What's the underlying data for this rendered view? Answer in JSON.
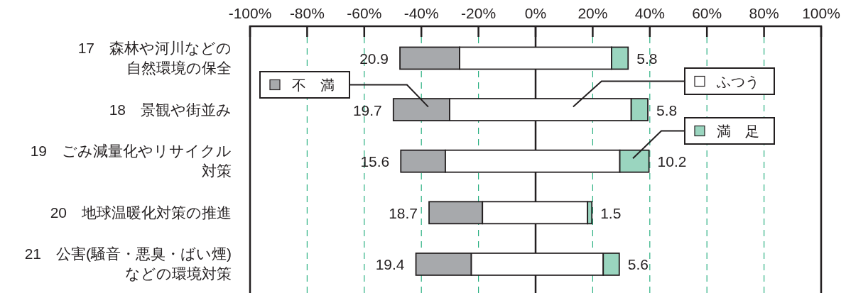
{
  "chart_data": {
    "type": "bar",
    "orientation": "horizontal",
    "grid": "x",
    "legend": "top",
    "categories": [
      "17　森林や河川などの自然環境の保全",
      "18　景観や街並み",
      "19　ごみ減量化やリサイクル対策",
      "20　地球温暖化対策の推進",
      "21　公害(騒音・悪臭・ばい煙)などの環境対策"
    ],
    "series": [
      {
        "name": "不　満",
        "color": "#a7a9ac",
        "base": [
          -47.5,
          -49.8,
          -47.2,
          -37.3,
          -41.9
        ],
        "values": [
          20.9,
          19.7,
          15.6,
          18.7,
          19.4
        ],
        "value_labels": [
          "20.9",
          "19.7",
          "15.6",
          "18.7",
          "19.4"
        ]
      },
      {
        "name": "ふつう",
        "color": "#ffffff",
        "base": [
          -26.6,
          -30.1,
          -31.6,
          -18.6,
          -22.5
        ],
        "values": [
          53.2,
          63.6,
          61.1,
          36.8,
          46.2
        ]
      },
      {
        "name": "満　足",
        "color": "#9ad5bf",
        "base": [
          26.6,
          33.5,
          29.5,
          18.2,
          23.7
        ],
        "values": [
          5.8,
          5.8,
          10.2,
          1.5,
          5.6
        ],
        "value_labels": [
          "5.8",
          "5.8",
          "10.2",
          "1.5",
          "5.6"
        ]
      }
    ],
    "xlim": [
      -100,
      100
    ],
    "xticks": [
      {
        "value": -100,
        "label": "-100%"
      },
      {
        "value": -80,
        "label": "-80%"
      },
      {
        "value": -60,
        "label": "-60%"
      },
      {
        "value": -40,
        "label": "-40%"
      },
      {
        "value": -20,
        "label": "-20%"
      },
      {
        "value": 0,
        "label": "0%"
      },
      {
        "value": 20,
        "label": "20%"
      },
      {
        "value": 40,
        "label": "40%"
      },
      {
        "value": 60,
        "label": "60%"
      },
      {
        "value": 80,
        "label": "80%"
      },
      {
        "value": 100,
        "label": "100%"
      }
    ]
  }
}
